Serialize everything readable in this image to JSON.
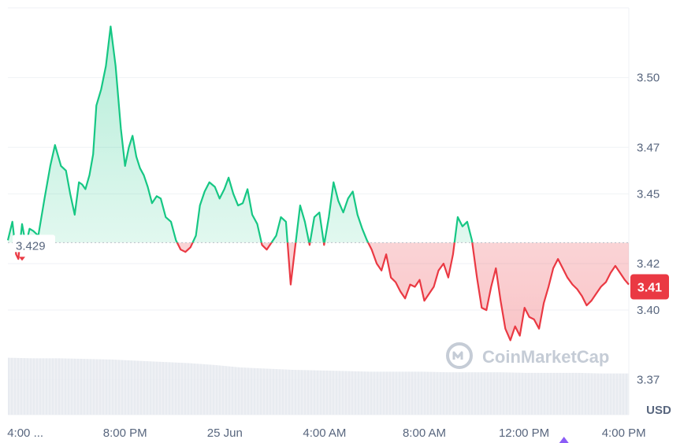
{
  "watermark": "CoinMarketCap",
  "currency_label": "USD",
  "reference_price": "3.429",
  "current_price": "3.41",
  "colors": {
    "up_line": "#16c784",
    "down_line": "#ea3943",
    "grid": "#eff2f5",
    "axis_text": "#58667e",
    "volume": "#e6e9ee",
    "reference_line": "#b9bfc8",
    "marker": "#8b5cf6"
  },
  "chart_data": {
    "type": "area",
    "title": "",
    "xlabel": "",
    "ylabel": "",
    "y_unit": "USD",
    "ylim": [
      3.355,
      3.53
    ],
    "y_ticks": [
      3.37,
      3.4,
      3.42,
      3.45,
      3.47,
      3.5
    ],
    "y_tick_labels": [
      "3.37",
      "3.40",
      "3.42",
      "3.45",
      "3.47",
      "3.50"
    ],
    "x_tick_labels": [
      "4:00 ...",
      "8:00 PM",
      "25 Jun",
      "4:00 AM",
      "8:00 AM",
      "12:00 PM",
      "4:00 PM"
    ],
    "x_tick_hours": [
      0,
      4,
      8,
      12,
      16,
      20,
      24
    ],
    "x_range_hours": [
      -0.7,
      24.2
    ],
    "baseline": 3.429,
    "last_value": 3.41,
    "series": [
      {
        "x": [
          -0.7,
          -0.52,
          -0.37,
          -0.28,
          -0.13,
          0.02,
          0.17,
          0.32,
          0.52,
          0.77,
          1.0,
          1.19,
          1.43,
          1.63,
          1.8,
          1.98,
          2.15,
          2.28,
          2.41,
          2.57,
          2.72,
          2.85,
          3.04,
          3.23,
          3.42,
          3.62,
          3.83,
          4.0,
          4.15,
          4.3,
          4.45,
          4.6,
          4.75,
          4.91,
          5.08,
          5.27,
          5.43,
          5.63,
          5.84,
          6.04,
          6.23,
          6.42,
          6.62,
          6.84,
          7.0,
          7.19,
          7.38,
          7.6,
          7.79,
          7.98,
          8.15,
          8.34,
          8.53,
          8.72,
          8.91,
          9.1,
          9.3,
          9.49,
          9.68,
          9.87,
          10.06,
          10.25,
          10.45,
          10.64,
          10.83,
          11.02,
          11.21,
          11.4,
          11.59,
          11.79,
          11.98,
          12.17,
          12.36,
          12.55,
          12.75,
          12.94,
          13.13,
          13.32,
          13.51,
          13.7,
          13.89,
          14.09,
          14.28,
          14.47,
          14.66,
          14.85,
          15.04,
          15.23,
          15.43,
          15.62,
          15.81,
          16.0,
          16.19,
          16.38,
          16.57,
          16.77,
          16.96,
          17.15,
          17.34,
          17.53,
          17.72,
          17.91,
          18.11,
          18.3,
          18.49,
          18.68,
          18.87,
          19.06,
          19.25,
          19.45,
          19.64,
          19.83,
          20.02,
          20.21,
          20.4,
          20.6,
          20.79,
          20.98,
          21.17,
          21.36,
          21.55,
          21.74,
          21.94,
          22.13,
          22.32,
          22.51,
          22.7,
          22.89,
          23.08,
          23.28,
          23.47,
          23.66,
          23.85,
          24.04,
          24.2
        ],
        "y": [
          3.43,
          3.438,
          3.424,
          3.422,
          3.437,
          3.428,
          3.435,
          3.434,
          3.432,
          3.448,
          3.462,
          3.471,
          3.462,
          3.46,
          3.45,
          3.441,
          3.455,
          3.454,
          3.452,
          3.458,
          3.467,
          3.488,
          3.495,
          3.505,
          3.522,
          3.505,
          3.478,
          3.462,
          3.47,
          3.475,
          3.466,
          3.461,
          3.458,
          3.453,
          3.446,
          3.449,
          3.448,
          3.44,
          3.438,
          3.43,
          3.426,
          3.425,
          3.427,
          3.432,
          3.445,
          3.451,
          3.455,
          3.453,
          3.448,
          3.452,
          3.457,
          3.45,
          3.445,
          3.446,
          3.452,
          3.441,
          3.437,
          3.428,
          3.426,
          3.429,
          3.432,
          3.44,
          3.438,
          3.411,
          3.428,
          3.445,
          3.438,
          3.428,
          3.44,
          3.442,
          3.428,
          3.44,
          3.455,
          3.447,
          3.442,
          3.448,
          3.451,
          3.441,
          3.435,
          3.43,
          3.426,
          3.42,
          3.417,
          3.424,
          3.414,
          3.412,
          3.408,
          3.405,
          3.411,
          3.41,
          3.413,
          3.404,
          3.407,
          3.41,
          3.417,
          3.42,
          3.414,
          3.424,
          3.44,
          3.436,
          3.438,
          3.43,
          3.414,
          3.401,
          3.4,
          3.41,
          3.418,
          3.404,
          3.392,
          3.387,
          3.393,
          3.389,
          3.401,
          3.397,
          3.396,
          3.392,
          3.403,
          3.41,
          3.418,
          3.422,
          3.418,
          3.414,
          3.411,
          3.409,
          3.406,
          3.402,
          3.404,
          3.407,
          3.41,
          3.412,
          3.416,
          3.419,
          3.416,
          3.413,
          3.411
        ]
      }
    ],
    "volume": {
      "x_range_hours": [
        -0.7,
        24.2
      ],
      "relative_levels": [
        0.94,
        0.93,
        0.93,
        0.92,
        0.91,
        0.89,
        0.87,
        0.85,
        0.82,
        0.78,
        0.76,
        0.74,
        0.73,
        0.72,
        0.71,
        0.71,
        0.71,
        0.7,
        0.7,
        0.7,
        0.69,
        0.69,
        0.69,
        0.68,
        0.68
      ]
    },
    "markers": [
      {
        "x_hour": 21.6,
        "shape": "triangle-up"
      }
    ]
  }
}
